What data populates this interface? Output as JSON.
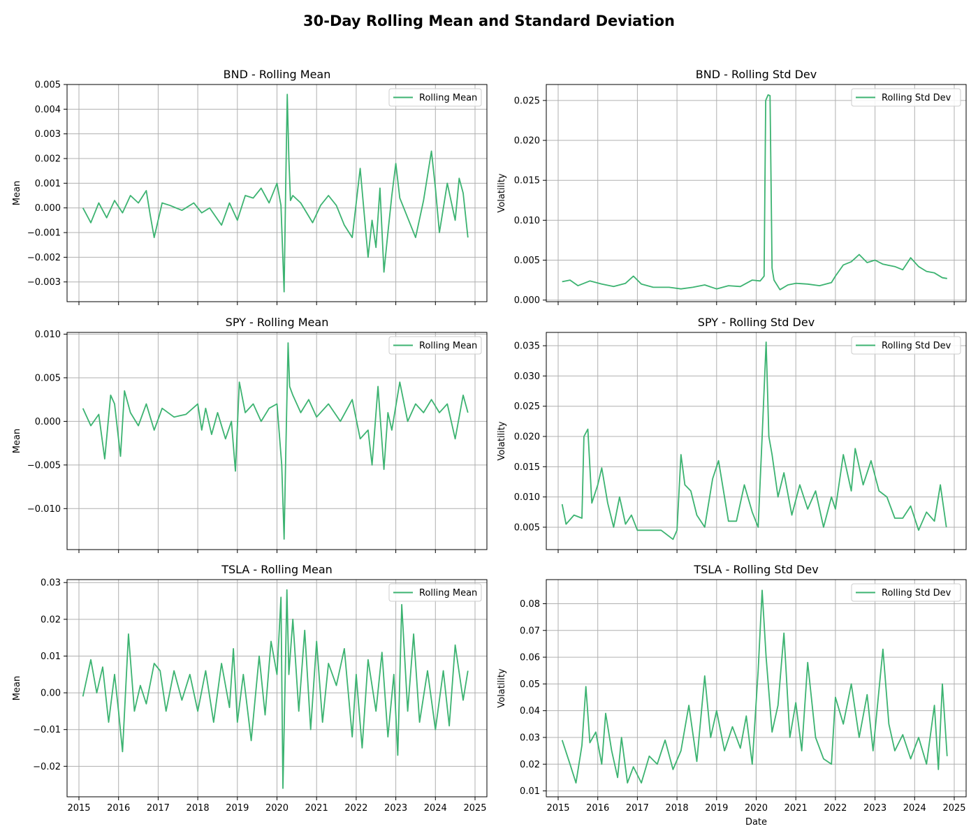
{
  "figure_title": "30-Day Rolling Mean and Standard Deviation",
  "series_color": "#3cb371",
  "grid_color": "#b0b0b0",
  "x_tick_labels": [
    "2015",
    "2016",
    "2017",
    "2018",
    "2019",
    "2020",
    "2021",
    "2022",
    "2023",
    "2024",
    "2025"
  ],
  "chart_data": [
    {
      "type": "line",
      "title": "BND - Rolling Mean",
      "xlabel": "",
      "ylabel": "Mean",
      "legend": "Rolling Mean",
      "legend_loc": "top-right",
      "grid": true,
      "xlim": [
        2014.7,
        2025.3
      ],
      "ylim": [
        -0.0038,
        0.005
      ],
      "yticks": [
        -0.003,
        -0.002,
        -0.001,
        0.0,
        0.001,
        0.002,
        0.003,
        0.004,
        0.005
      ],
      "ytick_labels": [
        "−0.003",
        "−0.002",
        "−0.001",
        "0.000",
        "0.001",
        "0.002",
        "0.003",
        "0.004",
        "0.005"
      ],
      "x": [
        2015.1,
        2015.3,
        2015.5,
        2015.7,
        2015.9,
        2016.1,
        2016.3,
        2016.5,
        2016.7,
        2016.8,
        2016.9,
        2017.1,
        2017.3,
        2017.6,
        2017.9,
        2018.1,
        2018.3,
        2018.6,
        2018.8,
        2019.0,
        2019.2,
        2019.4,
        2019.6,
        2019.8,
        2020.0,
        2020.1,
        2020.18,
        2020.22,
        2020.26,
        2020.3,
        2020.34,
        2020.4,
        2020.6,
        2020.9,
        2021.1,
        2021.3,
        2021.5,
        2021.7,
        2021.9,
        2022.1,
        2022.3,
        2022.4,
        2022.5,
        2022.6,
        2022.7,
        2022.8,
        2022.9,
        2023.0,
        2023.1,
        2023.3,
        2023.5,
        2023.7,
        2023.9,
        2024.0,
        2024.1,
        2024.3,
        2024.5,
        2024.6,
        2024.7,
        2024.82
      ],
      "y": [
        0.0,
        -0.0006,
        0.0002,
        -0.0004,
        0.0003,
        -0.0002,
        0.0005,
        0.0002,
        0.0007,
        -0.0003,
        -0.0012,
        0.0002,
        0.0001,
        -0.0001,
        0.0002,
        -0.0002,
        0.0,
        -0.0007,
        0.0002,
        -0.0005,
        0.0005,
        0.0004,
        0.0008,
        0.0002,
        0.001,
        0.0001,
        -0.0034,
        0.0009,
        0.0046,
        0.002,
        0.0003,
        0.0005,
        0.0002,
        -0.0006,
        0.0001,
        0.0005,
        0.0001,
        -0.0007,
        -0.0012,
        0.0016,
        -0.002,
        -0.0005,
        -0.0016,
        0.0008,
        -0.0026,
        -0.001,
        0.0005,
        0.0018,
        0.0004,
        -0.0004,
        -0.0012,
        0.0003,
        0.0023,
        0.0008,
        -0.001,
        0.001,
        -0.0005,
        0.0012,
        0.0006,
        -0.0012
      ]
    },
    {
      "type": "line",
      "title": "BND - Rolling Std Dev",
      "xlabel": "",
      "ylabel": "Volatility",
      "legend": "Rolling Std Dev",
      "legend_loc": "top-right",
      "grid": true,
      "xlim": [
        2014.7,
        2025.3
      ],
      "ylim": [
        -0.0002,
        0.027
      ],
      "yticks": [
        0.0,
        0.005,
        0.01,
        0.015,
        0.02,
        0.025
      ],
      "ytick_labels": [
        "0.000",
        "0.005",
        "0.010",
        "0.015",
        "0.020",
        "0.025"
      ],
      "x": [
        2015.1,
        2015.3,
        2015.5,
        2015.8,
        2016.1,
        2016.4,
        2016.7,
        2016.9,
        2017.1,
        2017.4,
        2017.8,
        2018.1,
        2018.4,
        2018.7,
        2019.0,
        2019.3,
        2019.6,
        2019.9,
        2020.1,
        2020.2,
        2020.24,
        2020.3,
        2020.35,
        2020.4,
        2020.45,
        2020.6,
        2020.8,
        2021.0,
        2021.3,
        2021.6,
        2021.9,
        2022.0,
        2022.2,
        2022.4,
        2022.6,
        2022.8,
        2023.0,
        2023.2,
        2023.5,
        2023.7,
        2023.9,
        2024.1,
        2024.3,
        2024.5,
        2024.7,
        2024.82
      ],
      "y": [
        0.0023,
        0.0025,
        0.0018,
        0.0024,
        0.002,
        0.0017,
        0.0021,
        0.003,
        0.002,
        0.0016,
        0.0016,
        0.0014,
        0.0016,
        0.0019,
        0.0014,
        0.0018,
        0.0017,
        0.0025,
        0.0024,
        0.003,
        0.025,
        0.0257,
        0.0256,
        0.004,
        0.0025,
        0.0013,
        0.0019,
        0.0021,
        0.002,
        0.0018,
        0.0022,
        0.003,
        0.0044,
        0.0048,
        0.0057,
        0.0047,
        0.005,
        0.0045,
        0.0042,
        0.0038,
        0.0053,
        0.0042,
        0.0036,
        0.0034,
        0.0028,
        0.0027
      ]
    },
    {
      "type": "line",
      "title": "SPY - Rolling Mean",
      "xlabel": "",
      "ylabel": "Mean",
      "legend": "Rolling Mean",
      "legend_loc": "top-right",
      "grid": true,
      "xlim": [
        2014.7,
        2025.3
      ],
      "ylim": [
        -0.0147,
        0.0102
      ],
      "yticks": [
        -0.01,
        -0.005,
        0.0,
        0.005,
        0.01
      ],
      "ytick_labels": [
        "−0.010",
        "−0.005",
        "0.000",
        "0.005",
        "0.010"
      ],
      "x": [
        2015.1,
        2015.3,
        2015.5,
        2015.65,
        2015.8,
        2015.9,
        2016.05,
        2016.15,
        2016.3,
        2016.5,
        2016.7,
        2016.9,
        2017.1,
        2017.4,
        2017.7,
        2018.0,
        2018.1,
        2018.2,
        2018.35,
        2018.5,
        2018.7,
        2018.85,
        2018.95,
        2019.05,
        2019.2,
        2019.4,
        2019.6,
        2019.8,
        2020.0,
        2020.12,
        2020.18,
        2020.22,
        2020.28,
        2020.32,
        2020.4,
        2020.6,
        2020.8,
        2021.0,
        2021.3,
        2021.6,
        2021.9,
        2022.1,
        2022.3,
        2022.4,
        2022.55,
        2022.7,
        2022.8,
        2022.9,
        2023.1,
        2023.3,
        2023.5,
        2023.7,
        2023.9,
        2024.1,
        2024.3,
        2024.5,
        2024.7,
        2024.82
      ],
      "y": [
        0.0015,
        -0.0005,
        0.0008,
        -0.0043,
        0.003,
        0.002,
        -0.004,
        0.0035,
        0.001,
        -0.0005,
        0.002,
        -0.001,
        0.0015,
        0.0005,
        0.0008,
        0.002,
        -0.001,
        0.0015,
        -0.0015,
        0.001,
        -0.002,
        0.0,
        -0.0057,
        0.0045,
        0.001,
        0.002,
        0.0,
        0.0015,
        0.002,
        -0.005,
        -0.0135,
        -0.004,
        0.009,
        0.004,
        0.003,
        0.001,
        0.0025,
        0.0005,
        0.002,
        0.0,
        0.0025,
        -0.002,
        -0.001,
        -0.005,
        0.004,
        -0.0055,
        0.001,
        -0.001,
        0.0045,
        0.0,
        0.002,
        0.001,
        0.0025,
        0.001,
        0.002,
        -0.002,
        0.003,
        0.001
      ]
    },
    {
      "type": "line",
      "title": "SPY - Rolling Std Dev",
      "xlabel": "",
      "ylabel": "Volatility",
      "legend": "Rolling Std Dev",
      "legend_loc": "top-right",
      "grid": true,
      "xlim": [
        2014.7,
        2025.3
      ],
      "ylim": [
        0.0013,
        0.0372
      ],
      "yticks": [
        0.005,
        0.01,
        0.015,
        0.02,
        0.025,
        0.03,
        0.035
      ],
      "ytick_labels": [
        "0.005",
        "0.010",
        "0.015",
        "0.020",
        "0.025",
        "0.030",
        "0.035"
      ],
      "x": [
        2015.1,
        2015.2,
        2015.4,
        2015.6,
        2015.65,
        2015.75,
        2015.85,
        2016.0,
        2016.1,
        2016.25,
        2016.4,
        2016.55,
        2016.7,
        2016.85,
        2017.0,
        2017.3,
        2017.6,
        2017.9,
        2018.0,
        2018.1,
        2018.2,
        2018.35,
        2018.5,
        2018.7,
        2018.9,
        2019.05,
        2019.3,
        2019.5,
        2019.7,
        2019.9,
        2020.05,
        2020.15,
        2020.25,
        2020.32,
        2020.4,
        2020.55,
        2020.7,
        2020.9,
        2021.1,
        2021.3,
        2021.5,
        2021.7,
        2021.9,
        2022.0,
        2022.2,
        2022.4,
        2022.5,
        2022.7,
        2022.9,
        2023.1,
        2023.3,
        2023.5,
        2023.7,
        2023.9,
        2024.1,
        2024.3,
        2024.5,
        2024.65,
        2024.8
      ],
      "y": [
        0.0088,
        0.0055,
        0.007,
        0.0065,
        0.02,
        0.0212,
        0.009,
        0.012,
        0.0148,
        0.009,
        0.005,
        0.01,
        0.0055,
        0.007,
        0.0045,
        0.0045,
        0.0045,
        0.003,
        0.0045,
        0.017,
        0.012,
        0.011,
        0.007,
        0.005,
        0.013,
        0.016,
        0.006,
        0.006,
        0.012,
        0.0075,
        0.005,
        0.02,
        0.0356,
        0.02,
        0.017,
        0.01,
        0.014,
        0.007,
        0.012,
        0.008,
        0.011,
        0.005,
        0.01,
        0.008,
        0.017,
        0.011,
        0.018,
        0.012,
        0.016,
        0.011,
        0.01,
        0.0065,
        0.0065,
        0.0085,
        0.0045,
        0.0075,
        0.006,
        0.012,
        0.005
      ]
    },
    {
      "type": "line",
      "title": "TSLA - Rolling Mean",
      "xlabel": "",
      "ylabel": "Mean",
      "legend": "Rolling Mean",
      "legend_loc": "top-right",
      "grid": true,
      "xlim": [
        2014.7,
        2025.3
      ],
      "ylim": [
        -0.0283,
        0.0308
      ],
      "yticks": [
        -0.02,
        -0.01,
        0.0,
        0.01,
        0.02,
        0.03
      ],
      "ytick_labels": [
        "−0.02",
        "−0.01",
        "0.00",
        "0.01",
        "0.02",
        "0.03"
      ],
      "x": [
        2015.1,
        2015.3,
        2015.45,
        2015.6,
        2015.75,
        2015.9,
        2016.0,
        2016.1,
        2016.25,
        2016.4,
        2016.55,
        2016.7,
        2016.9,
        2017.05,
        2017.2,
        2017.4,
        2017.6,
        2017.8,
        2018.0,
        2018.2,
        2018.4,
        2018.6,
        2018.8,
        2018.9,
        2019.0,
        2019.15,
        2019.35,
        2019.55,
        2019.7,
        2019.85,
        2020.0,
        2020.1,
        2020.15,
        2020.2,
        2020.25,
        2020.3,
        2020.4,
        2020.55,
        2020.7,
        2020.85,
        2021.0,
        2021.15,
        2021.3,
        2021.5,
        2021.7,
        2021.9,
        2022.0,
        2022.15,
        2022.3,
        2022.5,
        2022.65,
        2022.8,
        2022.95,
        2023.05,
        2023.15,
        2023.3,
        2023.45,
        2023.6,
        2023.8,
        2024.0,
        2024.2,
        2024.35,
        2024.5,
        2024.7,
        2024.82
      ],
      "y": [
        -0.001,
        0.009,
        0.0,
        0.007,
        -0.008,
        0.005,
        -0.005,
        -0.016,
        0.016,
        -0.005,
        0.002,
        -0.003,
        0.008,
        0.006,
        -0.005,
        0.006,
        -0.002,
        0.005,
        -0.005,
        0.006,
        -0.008,
        0.008,
        -0.004,
        0.012,
        -0.008,
        0.005,
        -0.013,
        0.01,
        -0.006,
        0.014,
        0.005,
        0.026,
        -0.026,
        0.0,
        0.028,
        0.005,
        0.02,
        -0.005,
        0.017,
        -0.01,
        0.014,
        -0.008,
        0.008,
        0.002,
        0.012,
        -0.012,
        0.005,
        -0.015,
        0.009,
        -0.005,
        0.011,
        -0.012,
        0.005,
        -0.017,
        0.024,
        -0.005,
        0.016,
        -0.008,
        0.006,
        -0.01,
        0.006,
        -0.009,
        0.013,
        -0.002,
        0.006
      ]
    },
    {
      "type": "line",
      "title": "TSLA - Rolling Std Dev",
      "xlabel": "Date",
      "ylabel": "Volatility",
      "legend": "Rolling Std Dev",
      "legend_loc": "top-right",
      "grid": true,
      "xlim": [
        2014.7,
        2025.3
      ],
      "ylim": [
        0.0078,
        0.089
      ],
      "yticks": [
        0.01,
        0.02,
        0.03,
        0.04,
        0.05,
        0.06,
        0.07,
        0.08
      ],
      "ytick_labels": [
        "0.01",
        "0.02",
        "0.03",
        "0.04",
        "0.05",
        "0.06",
        "0.07",
        "0.08"
      ],
      "x": [
        2015.1,
        2015.3,
        2015.45,
        2015.6,
        2015.7,
        2015.8,
        2015.95,
        2016.1,
        2016.2,
        2016.35,
        2016.5,
        2016.6,
        2016.75,
        2016.9,
        2017.1,
        2017.3,
        2017.5,
        2017.7,
        2017.9,
        2018.1,
        2018.3,
        2018.5,
        2018.7,
        2018.85,
        2019.0,
        2019.2,
        2019.4,
        2019.6,
        2019.75,
        2019.9,
        2020.05,
        2020.15,
        2020.25,
        2020.4,
        2020.55,
        2020.7,
        2020.85,
        2021.0,
        2021.15,
        2021.3,
        2021.5,
        2021.7,
        2021.9,
        2022.0,
        2022.2,
        2022.4,
        2022.6,
        2022.8,
        2022.95,
        2023.05,
        2023.2,
        2023.35,
        2023.5,
        2023.7,
        2023.9,
        2024.1,
        2024.3,
        2024.5,
        2024.6,
        2024.7,
        2024.82
      ],
      "y": [
        0.029,
        0.02,
        0.013,
        0.027,
        0.049,
        0.028,
        0.032,
        0.02,
        0.039,
        0.025,
        0.015,
        0.03,
        0.013,
        0.019,
        0.013,
        0.023,
        0.02,
        0.029,
        0.018,
        0.025,
        0.042,
        0.021,
        0.053,
        0.03,
        0.04,
        0.025,
        0.034,
        0.026,
        0.038,
        0.02,
        0.055,
        0.085,
        0.06,
        0.032,
        0.042,
        0.069,
        0.03,
        0.043,
        0.025,
        0.058,
        0.03,
        0.022,
        0.02,
        0.045,
        0.035,
        0.05,
        0.03,
        0.046,
        0.025,
        0.04,
        0.063,
        0.035,
        0.025,
        0.031,
        0.022,
        0.03,
        0.02,
        0.042,
        0.018,
        0.05,
        0.023
      ]
    }
  ]
}
